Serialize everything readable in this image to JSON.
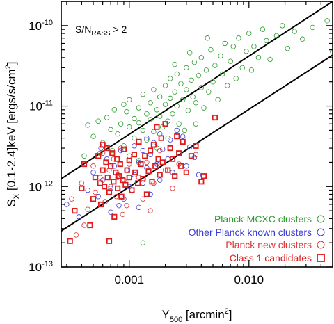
{
  "chart_data": {
    "type": "scatter",
    "xscale": "log",
    "yscale": "log",
    "xlim": [
      0.00027,
      0.05
    ],
    "ylim": [
      1e-13,
      2e-10
    ],
    "x_ticks": [
      {
        "value": 0.001,
        "label": "0.001"
      },
      {
        "value": 0.01,
        "label": "0.010"
      }
    ],
    "y_ticks": [
      {
        "value": 1e-13,
        "base": "10",
        "exp": "-13"
      },
      {
        "value": 1e-12,
        "base": "10",
        "exp": "-12"
      },
      {
        "value": 1e-11,
        "base": "10",
        "exp": "-11"
      },
      {
        "value": 1e-10,
        "base": "10",
        "exp": "-10"
      }
    ],
    "xlabel": {
      "main": "Y",
      "sub": "500",
      "unit": " [arcmin",
      "sup": "2",
      "close": "]"
    },
    "ylabel": {
      "main": "S",
      "sub": "X",
      "rest": " [0.1-2.4]keV [ergs/s/cm",
      "sup": "2",
      "close": "]"
    },
    "annotation": {
      "main": "S/N",
      "sub": "RASS",
      "rest": " > 2"
    },
    "legend_position": "bottom-right",
    "lines": [
      {
        "x": [
          0.00027,
          0.05
        ],
        "y": [
          1.25e-12,
          2e-10
        ]
      },
      {
        "x": [
          0.00027,
          0.05
        ],
        "y": [
          2.8e-13,
          4.3e-11
        ]
      }
    ],
    "series": [
      {
        "name": "Planck-MCXC clusters",
        "color": "#2e9a2e",
        "marker": "circle",
        "points": [
          [
            0.00045,
            5.8e-12
          ],
          [
            0.0005,
            4.2e-12
          ],
          [
            0.00055,
            6.5e-12
          ],
          [
            0.0006,
            3.5e-12
          ],
          [
            0.00065,
            7.2e-12
          ],
          [
            0.0007,
            5.1e-12
          ],
          [
            0.00072,
            2.8e-12
          ],
          [
            0.00075,
            9e-12
          ],
          [
            0.0008,
            4.5e-12
          ],
          [
            0.00085,
            6e-12
          ],
          [
            0.0009,
            3.2e-12
          ],
          [
            0.00095,
            8.5e-12
          ],
          [
            0.001,
            5.5e-12
          ],
          [
            0.001,
            1.2e-11
          ],
          [
            0.0011,
            7e-12
          ],
          [
            0.0011,
            4e-12
          ],
          [
            0.0012,
            9.5e-12
          ],
          [
            0.0012,
            6.2e-12
          ],
          [
            0.0013,
            1.4e-11
          ],
          [
            0.0013,
            5e-12
          ],
          [
            0.0014,
            8e-12
          ],
          [
            0.0014,
            3.8e-12
          ],
          [
            0.0015,
            1.1e-11
          ],
          [
            0.0015,
            6.8e-12
          ],
          [
            0.0016,
            1.6e-11
          ],
          [
            0.0016,
            4.8e-12
          ],
          [
            0.0017,
            9e-12
          ],
          [
            0.0018,
            1.3e-11
          ],
          [
            0.0018,
            7.5e-12
          ],
          [
            0.0019,
            5.5e-12
          ],
          [
            0.002,
            1.8e-11
          ],
          [
            0.002,
            1.05e-11
          ],
          [
            0.0021,
            6.5e-12
          ],
          [
            0.0022,
            2.2e-11
          ],
          [
            0.0022,
            1.25e-11
          ],
          [
            0.0023,
            8e-12
          ],
          [
            0.0024,
            1.5e-11
          ],
          [
            0.0025,
            2.5e-11
          ],
          [
            0.0025,
            1e-11
          ],
          [
            0.0026,
            6e-12
          ],
          [
            0.0027,
            1.9e-11
          ],
          [
            0.0028,
            1.2e-11
          ],
          [
            0.003,
            3e-11
          ],
          [
            0.003,
            1.6e-11
          ],
          [
            0.0031,
            8.8e-12
          ],
          [
            0.0033,
            2.1e-11
          ],
          [
            0.0034,
            1.3e-11
          ],
          [
            0.0035,
            3.5e-11
          ],
          [
            0.0036,
            1.1e-11
          ],
          [
            0.0038,
            2.4e-11
          ],
          [
            0.004,
            1.7e-11
          ],
          [
            0.004,
            4e-11
          ],
          [
            0.0042,
            9.5e-12
          ],
          [
            0.0044,
            2.8e-11
          ],
          [
            0.0046,
            1.5e-11
          ],
          [
            0.0048,
            5e-11
          ],
          [
            0.005,
            2e-11
          ],
          [
            0.0052,
            3.2e-11
          ],
          [
            0.0055,
            1.2e-11
          ],
          [
            0.0058,
            4.2e-11
          ],
          [
            0.006,
            2.5e-11
          ],
          [
            0.0063,
            6e-11
          ],
          [
            0.0066,
            1.8e-11
          ],
          [
            0.007,
            3.6e-11
          ],
          [
            0.0074,
            5.5e-11
          ],
          [
            0.0078,
            2.2e-11
          ],
          [
            0.0082,
            7e-11
          ],
          [
            0.0088,
            3e-11
          ],
          [
            0.0095,
            4.8e-11
          ],
          [
            0.01,
            8e-11
          ],
          [
            0.0105,
            2.8e-11
          ],
          [
            0.011,
            5.5e-11
          ],
          [
            0.012,
            4e-11
          ],
          [
            0.013,
            9e-11
          ],
          [
            0.014,
            6.5e-11
          ],
          [
            0.015,
            3.8e-11
          ],
          [
            0.017,
            7.5e-11
          ],
          [
            0.019,
            1e-10
          ],
          [
            0.021,
            5.2e-11
          ],
          [
            0.024,
            8.5e-11
          ],
          [
            0.028,
            6.8e-11
          ],
          [
            0.034,
            9.5e-11
          ],
          [
            0.045,
            1.15e-10
          ],
          [
            0.05,
            4.7e-11
          ],
          [
            0.0017,
            3e-12
          ],
          [
            0.0021,
            4e-12
          ],
          [
            0.0029,
            5e-12
          ],
          [
            0.0012,
            2.1e-12
          ],
          [
            0.00057,
            2.6e-12
          ],
          [
            0.0024,
            3.3e-11
          ],
          [
            0.0032,
            4.6e-11
          ],
          [
            0.0045,
            7e-11
          ],
          [
            0.0036,
            6e-12
          ],
          [
            0.0013,
            2e-13
          ],
          [
            0.00042,
            2.4e-12
          ],
          [
            0.0009,
            1.05e-11
          ]
        ]
      },
      {
        "name": "Other Planck known clusters",
        "color": "#3b3bd6",
        "marker": "circle",
        "points": [
          [
            0.0003,
            6e-13
          ],
          [
            0.00038,
            4.2e-13
          ],
          [
            0.00045,
            9e-13
          ],
          [
            0.0005,
            1.5e-12
          ],
          [
            0.00055,
            7.5e-13
          ],
          [
            0.0006,
            1.2e-12
          ],
          [
            0.00065,
            2.2e-12
          ],
          [
            0.0007,
            9.5e-13
          ],
          [
            0.00075,
            1.8e-12
          ],
          [
            0.0008,
            1.3e-12
          ],
          [
            0.00085,
            2.8e-12
          ],
          [
            0.0009,
            7e-13
          ],
          [
            0.00095,
            1.6e-12
          ],
          [
            0.001,
            2.4e-12
          ],
          [
            0.001,
            1e-12
          ],
          [
            0.0011,
            3.2e-12
          ],
          [
            0.0011,
            1.4e-12
          ],
          [
            0.0012,
            2e-12
          ],
          [
            0.0012,
            5.5e-13
          ],
          [
            0.0013,
            2.8e-12
          ],
          [
            0.0013,
            1.1e-12
          ],
          [
            0.0014,
            4e-12
          ],
          [
            0.0014,
            1.7e-12
          ],
          [
            0.0015,
            2.5e-12
          ],
          [
            0.0015,
            8e-13
          ],
          [
            0.0016,
            3.5e-12
          ],
          [
            0.0017,
            1.9e-12
          ],
          [
            0.0018,
            4.5e-12
          ],
          [
            0.0018,
            1.2e-12
          ],
          [
            0.0019,
            2.9e-12
          ],
          [
            0.002,
            6e-12
          ],
          [
            0.0021,
            2.2e-12
          ],
          [
            0.0022,
            3.8e-12
          ],
          [
            0.0023,
            1.5e-12
          ],
          [
            0.0025,
            5e-12
          ],
          [
            0.0026,
            2.6e-12
          ],
          [
            0.0028,
            4.2e-12
          ],
          [
            0.003,
            1.8e-12
          ],
          [
            0.0032,
            3.1e-12
          ],
          [
            0.0035,
            2.3e-12
          ],
          [
            0.0038,
            1.4e-12
          ],
          [
            0.0007,
            4.8e-13
          ],
          [
            0.00058,
            3e-12
          ],
          [
            0.00082,
            5.8e-13
          ]
        ]
      },
      {
        "name": "Planck new clusters",
        "color": "#e03030",
        "marker": "circle",
        "points": [
          [
            0.00033,
            7e-13
          ],
          [
            0.0004,
            1.1e-12
          ],
          [
            0.00045,
            5.2e-13
          ],
          [
            0.0005,
            1.8e-12
          ],
          [
            0.00052,
            8.5e-13
          ],
          [
            0.00057,
            1.3e-12
          ],
          [
            0.0006,
            2.6e-12
          ],
          [
            0.00063,
            6.5e-13
          ],
          [
            0.00068,
            1.6e-12
          ],
          [
            0.0007,
            1e-12
          ],
          [
            0.00074,
            2.2e-12
          ],
          [
            0.00078,
            7.5e-13
          ],
          [
            0.0008,
            1.4e-12
          ],
          [
            0.00085,
            3e-12
          ],
          [
            0.0009,
            1.2e-12
          ],
          [
            0.00095,
            5.8e-13
          ],
          [
            0.001,
            1.9e-12
          ],
          [
            0.00105,
            9e-13
          ],
          [
            0.0011,
            2.5e-12
          ],
          [
            0.0012,
            1.3e-12
          ],
          [
            0.0013,
            7e-13
          ],
          [
            0.0014,
            2e-12
          ],
          [
            0.0016,
            1.1e-12
          ],
          [
            0.0018,
            2.8e-12
          ],
          [
            0.002,
            1.6e-12
          ],
          [
            0.0023,
            9.5e-13
          ],
          [
            0.0026,
            1.9e-12
          ],
          [
            0.0036,
            2.5e-12
          ],
          [
            0.00042,
            3.3e-13
          ],
          [
            0.00036,
            2.5e-13
          ],
          [
            0.00088,
            4.5e-13
          ],
          [
            0.0015,
            5e-13
          ]
        ]
      },
      {
        "name": "Class 1 candidates",
        "color": "#e01a1a",
        "marker": "square",
        "points": [
          [
            0.00032,
            2.1e-13
          ],
          [
            0.00035,
            5e-13
          ],
          [
            0.0004,
            9.5e-13
          ],
          [
            0.00042,
            1.9e-12
          ],
          [
            0.00047,
            3.3e-13
          ],
          [
            0.0005,
            7e-13
          ],
          [
            0.00052,
            1.3e-12
          ],
          [
            0.00055,
            2.4e-12
          ],
          [
            0.00057,
            1.1e-12
          ],
          [
            0.00058,
            6e-13
          ],
          [
            0.0006,
            3.3e-12
          ],
          [
            0.0006,
            1.6e-12
          ],
          [
            0.00062,
            1e-12
          ],
          [
            0.00064,
            2e-12
          ],
          [
            0.00065,
            3e-12
          ],
          [
            0.00066,
            1.3e-12
          ],
          [
            0.00068,
            8.5e-13
          ],
          [
            0.0007,
            1.8e-12
          ],
          [
            0.00072,
            2.6e-12
          ],
          [
            0.00074,
            1.15e-12
          ],
          [
            0.00075,
            4.2e-13
          ],
          [
            0.00077,
            1.5e-12
          ],
          [
            0.00079,
            2.2e-12
          ],
          [
            0.0008,
            9.5e-13
          ],
          [
            0.00082,
            1.35e-12
          ],
          [
            0.00084,
            1.9e-12
          ],
          [
            0.00086,
            7.5e-13
          ],
          [
            0.00088,
            1.2e-12
          ],
          [
            0.0009,
            2.9e-12
          ],
          [
            0.00093,
            1.05e-12
          ],
          [
            0.00096,
            1.6e-12
          ],
          [
            0.001,
            2.1e-12
          ],
          [
            0.001,
            1.3e-12
          ],
          [
            0.00105,
            9e-13
          ],
          [
            0.0011,
            2.5e-12
          ],
          [
            0.00112,
            1.5e-12
          ],
          [
            0.00118,
            1.1e-12
          ],
          [
            0.0012,
            3.6e-12
          ],
          [
            0.00125,
            1.9e-12
          ],
          [
            0.0013,
            1.25e-12
          ],
          [
            0.00135,
            2.4e-12
          ],
          [
            0.0014,
            8e-13
          ],
          [
            0.00145,
            1.55e-12
          ],
          [
            0.0015,
            2.8e-12
          ],
          [
            0.00155,
            1.15e-12
          ],
          [
            0.0016,
            3.3e-12
          ],
          [
            0.00165,
            1.8e-12
          ],
          [
            0.0017,
            5.5e-12
          ],
          [
            0.00175,
            2.2e-12
          ],
          [
            0.0018,
            1.4e-12
          ],
          [
            0.00185,
            4e-12
          ],
          [
            0.0019,
            2e-12
          ],
          [
            0.002,
            6e-12
          ],
          [
            0.0021,
            1.6e-12
          ],
          [
            0.0022,
            3e-12
          ],
          [
            0.0023,
            2.2e-12
          ],
          [
            0.0024,
            1.35e-12
          ],
          [
            0.0025,
            4.2e-12
          ],
          [
            0.0026,
            2.6e-12
          ],
          [
            0.0027,
            1.8e-12
          ],
          [
            0.0028,
            3.6e-12
          ],
          [
            0.003,
            1.5e-12
          ],
          [
            0.0033,
            2.4e-12
          ],
          [
            0.0036,
            3.2e-12
          ],
          [
            0.004,
            1.15e-12
          ],
          [
            0.0042,
            1.35e-12
          ],
          [
            0.0052,
            7.2e-12
          ],
          [
            0.00068,
            2.1e-13
          ]
        ]
      }
    ]
  }
}
